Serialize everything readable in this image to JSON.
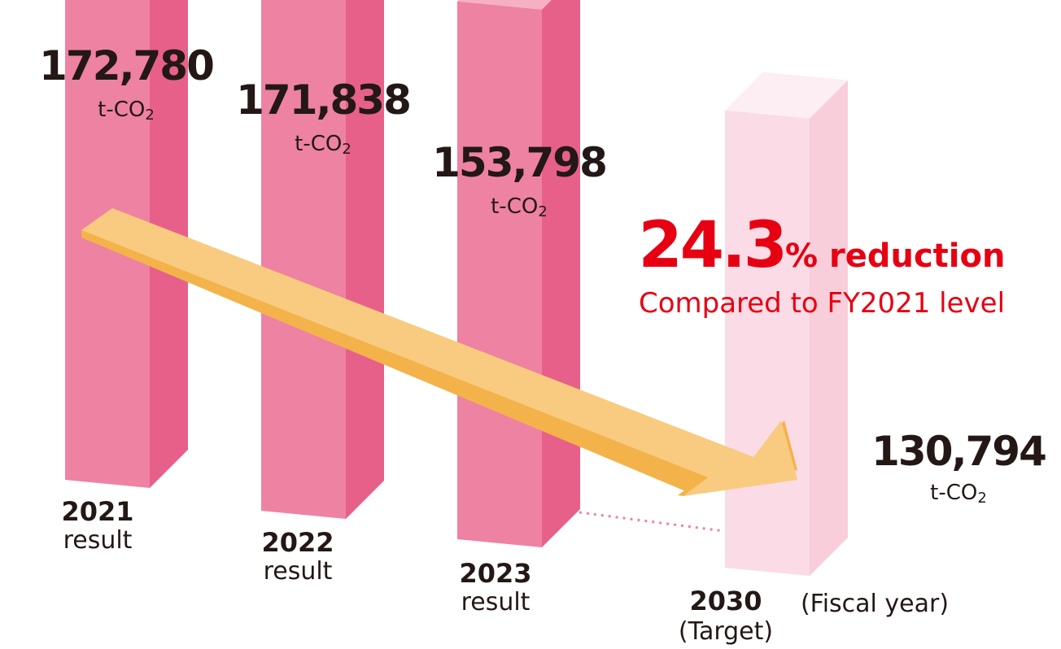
{
  "chart_data": {
    "type": "bar",
    "categories": [
      {
        "year": "2021",
        "sub": "result"
      },
      {
        "year": "2022",
        "sub": "result"
      },
      {
        "year": "2023",
        "sub": "result"
      },
      {
        "year": "2030",
        "sub": "(Target)"
      }
    ],
    "values": [
      172780,
      171838,
      153798,
      130794
    ],
    "value_labels": [
      "172,780",
      "171,838",
      "153,798",
      "130,794"
    ],
    "unit": {
      "main": "t-CO",
      "sub": "2"
    },
    "target_index": 3,
    "xlabel": "(Fiscal year)",
    "annotation": {
      "big": "24.3",
      "rest": "% reduction",
      "line2": "Compared to FY2021 level"
    },
    "colors": {
      "bar_front": "#ee82a2",
      "bar_side": "#e7608a",
      "bar_top": "#f5b0c4",
      "target_front": "#fbdbe5",
      "target_side": "#f8cedb",
      "target_top": "#fdeef3",
      "arrow": "#f8cb80",
      "arrow_edge": "#f3b34a",
      "accent_red": "#e60012",
      "text": "#231815"
    }
  }
}
